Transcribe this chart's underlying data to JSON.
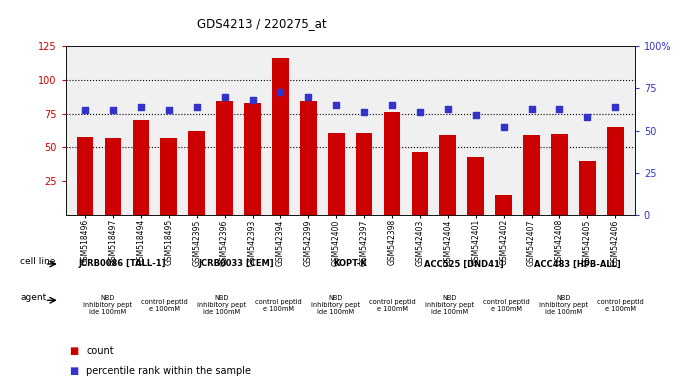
{
  "title": "GDS4213 / 220275_at",
  "samples": [
    "GSM518496",
    "GSM518497",
    "GSM518494",
    "GSM518495",
    "GSM542395",
    "GSM542396",
    "GSM542393",
    "GSM542394",
    "GSM542399",
    "GSM542400",
    "GSM542397",
    "GSM542398",
    "GSM542403",
    "GSM542404",
    "GSM542401",
    "GSM542402",
    "GSM542407",
    "GSM542408",
    "GSM542405",
    "GSM542406"
  ],
  "counts": [
    58,
    57,
    70,
    57,
    62,
    84,
    83,
    116,
    84,
    61,
    61,
    76,
    47,
    59,
    43,
    15,
    59,
    60,
    40,
    65
  ],
  "percentiles": [
    62,
    62,
    64,
    62,
    64,
    70,
    68,
    73,
    70,
    65,
    61,
    65,
    61,
    63,
    59,
    52,
    63,
    63,
    58,
    64
  ],
  "ylim_left": [
    0,
    125
  ],
  "ylim_right": [
    0,
    100
  ],
  "yticks_left": [
    25,
    50,
    75,
    100,
    125
  ],
  "yticks_right": [
    0,
    25,
    50,
    75,
    100
  ],
  "bar_color": "#cc0000",
  "dot_color": "#3333cc",
  "cell_lines": [
    {
      "label": "JCRB0086 [TALL-1]",
      "start": 0,
      "end": 4,
      "color": "#ccffcc"
    },
    {
      "label": "JCRB0033 [CEM]",
      "start": 4,
      "end": 8,
      "color": "#ccffcc"
    },
    {
      "label": "KOPT-K",
      "start": 8,
      "end": 12,
      "color": "#ccffcc"
    },
    {
      "label": "ACC525 [DND41]",
      "start": 12,
      "end": 16,
      "color": "#ccffcc"
    },
    {
      "label": "ACC483 [HPB-ALL]",
      "start": 16,
      "end": 20,
      "color": "#33cc33"
    }
  ],
  "agents": [
    {
      "label": "NBD\ninhibitory pept\nide 100mM",
      "start": 0,
      "end": 3,
      "color": "#ff99ff"
    },
    {
      "label": "control peptid\ne 100mM",
      "start": 3,
      "end": 4,
      "color": "#ee66ee"
    },
    {
      "label": "NBD\ninhibitory pept\nide 100mM",
      "start": 4,
      "end": 7,
      "color": "#ff99ff"
    },
    {
      "label": "control peptid\ne 100mM",
      "start": 7,
      "end": 8,
      "color": "#ee66ee"
    },
    {
      "label": "NBD\ninhibitory pept\nide 100mM",
      "start": 8,
      "end": 11,
      "color": "#ff99ff"
    },
    {
      "label": "control peptid\ne 100mM",
      "start": 11,
      "end": 12,
      "color": "#ee66ee"
    },
    {
      "label": "NBD\ninhibitory pept\nide 100mM",
      "start": 12,
      "end": 15,
      "color": "#ff99ff"
    },
    {
      "label": "control peptid\ne 100mM",
      "start": 15,
      "end": 16,
      "color": "#ee66ee"
    },
    {
      "label": "NBD\ninhibitory pept\nide 100mM",
      "start": 16,
      "end": 19,
      "color": "#ff99ff"
    },
    {
      "label": "control peptid\ne 100mM",
      "start": 19,
      "end": 20,
      "color": "#ee66ee"
    }
  ],
  "row_label_cell_line": "cell line",
  "row_label_agent": "agent",
  "legend_count_label": "count",
  "legend_percentile_label": "percentile rank within the sample",
  "background_color": "#ffffff",
  "plot_bg_color": "#f0f0f0",
  "gridline_style": "dotted",
  "gridline_color": "#000000"
}
